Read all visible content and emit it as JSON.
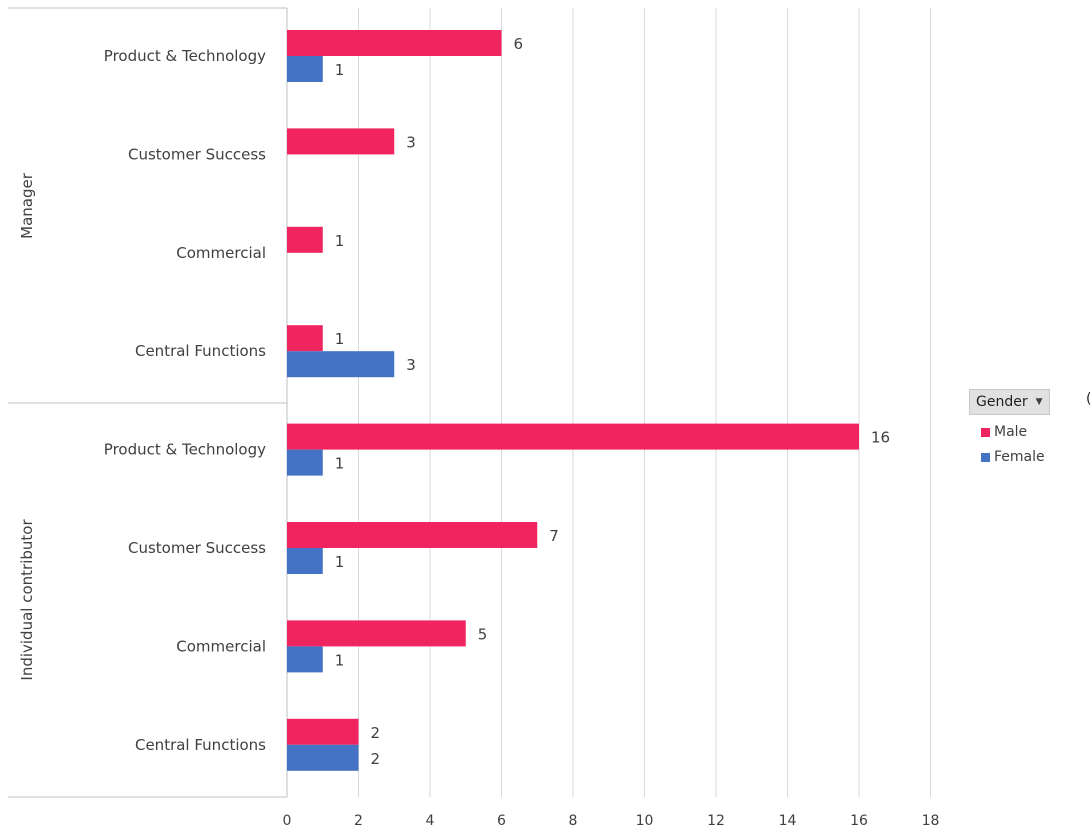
{
  "chart_data": {
    "type": "bar",
    "orientation": "horizontal",
    "groups": [
      {
        "name": "Manager",
        "categories": [
          "Product & Technology",
          "Customer Success",
          "Commercial",
          "Central Functions"
        ]
      },
      {
        "name": "Individual contributor",
        "categories": [
          "Product & Technology",
          "Customer Success",
          "Commercial",
          "Central Functions"
        ]
      }
    ],
    "series": [
      {
        "name": "Male",
        "color": "#F0245F",
        "values": [
          6,
          3,
          1,
          1,
          16,
          7,
          5,
          2
        ]
      },
      {
        "name": "Female",
        "color": "#4472C4",
        "values": [
          1,
          null,
          null,
          3,
          1,
          1,
          1,
          2
        ]
      }
    ],
    "xlim": [
      0,
      18
    ],
    "xticks": [
      0,
      2,
      4,
      6,
      8,
      10,
      12,
      14,
      16,
      18
    ],
    "grid": true,
    "data_labels": true,
    "legend": {
      "position": "right",
      "field_label": "Gender"
    }
  }
}
